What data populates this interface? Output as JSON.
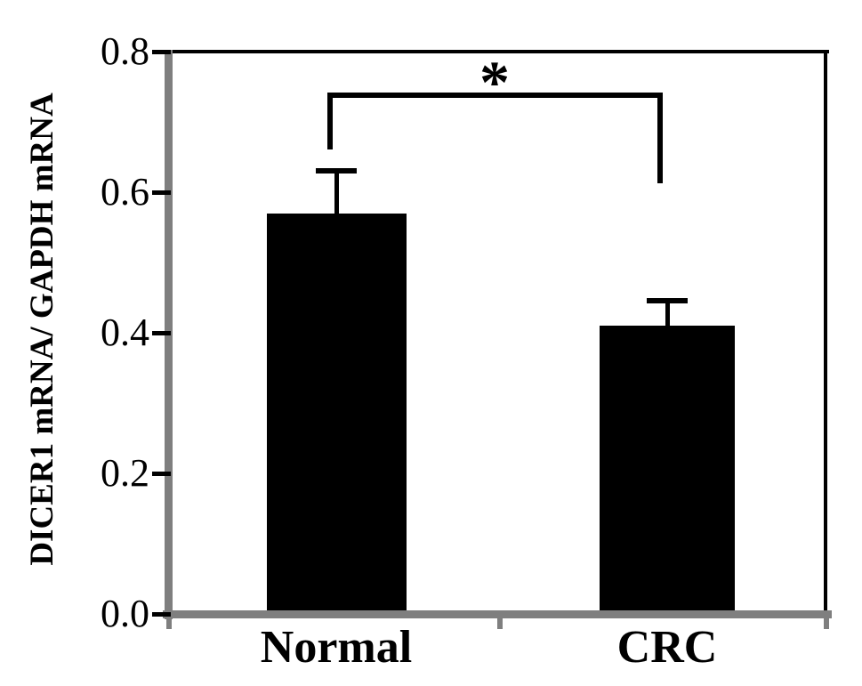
{
  "figure": {
    "background": "#ffffff"
  },
  "chart_data": {
    "type": "bar",
    "title": "",
    "xlabel": "",
    "ylabel": "DICER1 mRNA/ GAPDH mRNA",
    "categories": [
      "Normal",
      "CRC"
    ],
    "values": [
      0.57,
      0.41
    ],
    "error_plus": [
      0.06,
      0.035
    ],
    "ylim": [
      0,
      0.8
    ],
    "yticks": [
      0.0,
      0.2,
      0.4,
      0.6,
      0.8
    ],
    "ytick_labels": [
      "0.0",
      "0.2",
      "0.4",
      "0.6",
      "0.8"
    ],
    "bar_color": "#000000",
    "axis_color": "#7f7f7f",
    "grid": false,
    "legend": null,
    "annotations": [
      {
        "type": "significance-bracket",
        "label": "*",
        "between": [
          "Normal",
          "CRC"
        ]
      }
    ]
  }
}
